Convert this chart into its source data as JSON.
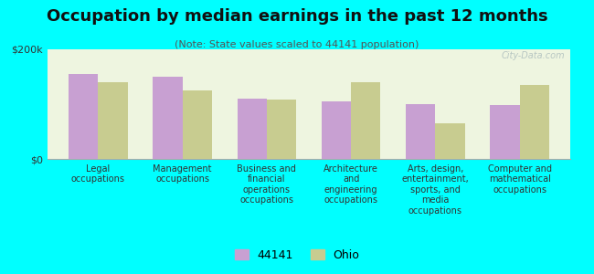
{
  "title": "Occupation by median earnings in the past 12 months",
  "subtitle": "(Note: State values scaled to 44141 population)",
  "categories": [
    "Legal\noccupations",
    "Management\noccupations",
    "Business and\nfinancial\noperations\noccupations",
    "Architecture\nand\nengineering\noccupations",
    "Arts, design,\nentertainment,\nsports, and\nmedia\noccupations",
    "Computer and\nmathematical\noccupations"
  ],
  "values_44141": [
    155000,
    150000,
    110000,
    105000,
    100000,
    98000
  ],
  "values_ohio": [
    140000,
    125000,
    108000,
    140000,
    65000,
    135000
  ],
  "ylim": [
    0,
    200000
  ],
  "yticks": [
    0,
    200000
  ],
  "ytick_labels": [
    "$0",
    "$200k"
  ],
  "color_44141": "#c8a0d2",
  "color_ohio": "#c8cc90",
  "bg_color": "#00ffff",
  "plot_bg": "#eef5e0",
  "watermark": "City-Data.com",
  "legend_label_44141": "44141",
  "legend_label_ohio": "Ohio",
  "bar_width": 0.35,
  "title_fontsize": 13,
  "subtitle_fontsize": 8,
  "tick_label_fontsize": 7,
  "legend_fontsize": 9
}
